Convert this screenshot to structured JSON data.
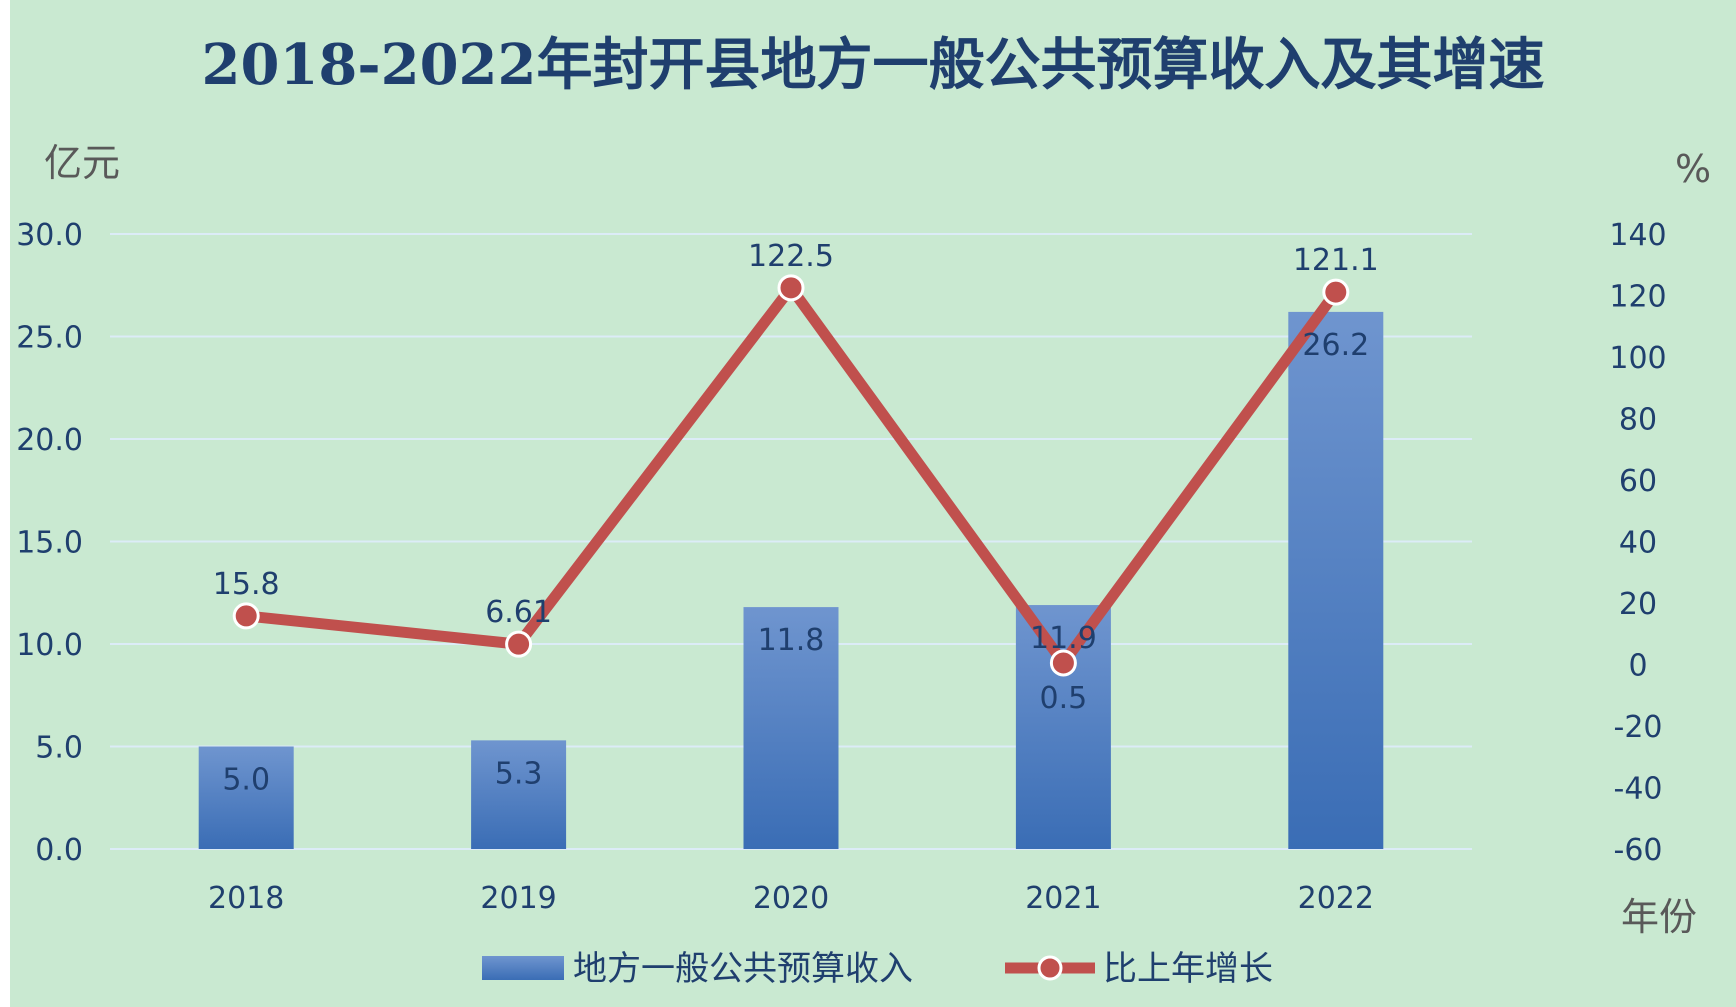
{
  "chart_data": {
    "type": "bar+line",
    "title": "2018-2022年封开县地方一般公共预算收入及其增速",
    "y_left_unit": "亿元",
    "y_right_unit": "%",
    "x_unit": "年份",
    "categories": [
      "2018",
      "2019",
      "2020",
      "2021",
      "2022"
    ],
    "y_left": {
      "min": 0,
      "max": 30,
      "step": 5,
      "ticks": [
        "0.0",
        "5.0",
        "10.0",
        "15.0",
        "20.0",
        "25.0",
        "30.0"
      ]
    },
    "y_right": {
      "min": -60,
      "max": 140,
      "step": 20,
      "ticks": [
        "-60",
        "-40",
        "-20",
        "0",
        "20",
        "40",
        "60",
        "80",
        "100",
        "120",
        "140"
      ]
    },
    "series": [
      {
        "name": "地方一般公共预算收入",
        "kind": "bar",
        "axis": "left",
        "values": [
          5.0,
          5.3,
          11.8,
          11.9,
          26.2
        ],
        "labels": [
          "5.0",
          "5.3",
          "11.8",
          "11.9",
          "26.2"
        ],
        "color": "#4472c4"
      },
      {
        "name": "比上年增长",
        "kind": "line",
        "axis": "right",
        "values": [
          15.8,
          6.61,
          122.5,
          0.5,
          121.1
        ],
        "labels": [
          "15.8",
          "6.61",
          "122.5",
          "0.5",
          "121.1"
        ],
        "color": "#c0504d"
      }
    ],
    "grid": true,
    "legend": "bottom"
  }
}
